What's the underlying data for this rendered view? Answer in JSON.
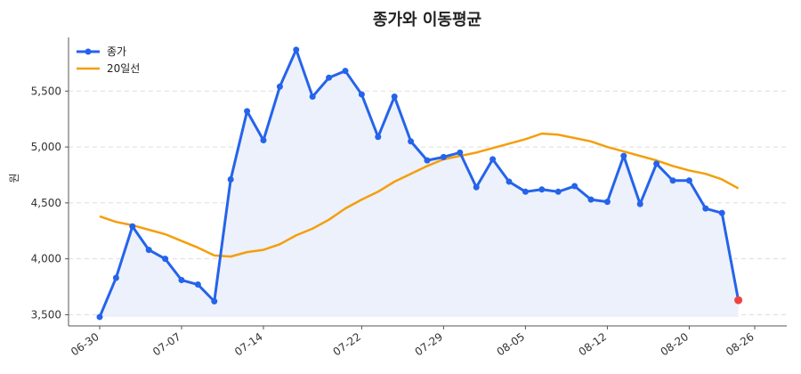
{
  "chart_data": {
    "type": "line",
    "title": "종가와 이동평균",
    "xlabel": "",
    "ylabel": "원",
    "ylim": [
      3400,
      5980
    ],
    "yticks": [
      3500,
      4000,
      4500,
      5000,
      5500
    ],
    "ytick_labels": [
      "3,500",
      "4,000",
      "4,500",
      "5,000",
      "5,500"
    ],
    "grid": "horizontal-dashed",
    "legend_position": "top-left",
    "colors": {
      "close": "#2563eb",
      "ma20": "#f59e0b",
      "last_point": "#ef4444",
      "fill": "#eaf0fb"
    },
    "x": [
      "06-30",
      "07-01",
      "07-02",
      "07-03",
      "07-04",
      "07-07",
      "07-08",
      "07-09",
      "07-10",
      "07-11",
      "07-14",
      "07-15",
      "07-16",
      "07-17",
      "07-18",
      "07-21",
      "07-22",
      "07-23",
      "07-24",
      "07-25",
      "07-28",
      "07-29",
      "07-30",
      "07-31",
      "08-01",
      "08-04",
      "08-05",
      "08-06",
      "08-07",
      "08-08",
      "08-11",
      "08-12",
      "08-13",
      "08-14",
      "08-18",
      "08-19",
      "08-20",
      "08-21",
      "08-22",
      "08-25",
      "08-26"
    ],
    "xticks": [
      "06-30",
      "07-07",
      "07-14",
      "07-22",
      "07-29",
      "08-05",
      "08-12",
      "08-20",
      "08-26"
    ],
    "series": [
      {
        "name": "종가",
        "values": [
          3480,
          3830,
          4290,
          4080,
          4000,
          3810,
          3770,
          3620,
          4710,
          5320,
          5060,
          5540,
          5870,
          5450,
          5620,
          5680,
          5470,
          5090,
          5450,
          5050,
          4880,
          4910,
          4950,
          4640,
          4890,
          4690,
          4600,
          4620,
          4600,
          4650,
          4530,
          4510,
          4920,
          4490,
          4850,
          4700,
          4700,
          4450,
          4410,
          3630,
          null
        ]
      },
      {
        "name": "20일선",
        "values": [
          4380,
          4330,
          4300,
          4260,
          4220,
          4160,
          4100,
          4030,
          4020,
          4060,
          4080,
          4130,
          4210,
          4270,
          4350,
          4450,
          4530,
          4600,
          4690,
          4760,
          4830,
          4890,
          4920,
          4950,
          4990,
          5030,
          5070,
          5120,
          5110,
          5080,
          5050,
          5000,
          4960,
          4920,
          4880,
          4830,
          4790,
          4760,
          4710,
          4630,
          null
        ]
      }
    ]
  }
}
